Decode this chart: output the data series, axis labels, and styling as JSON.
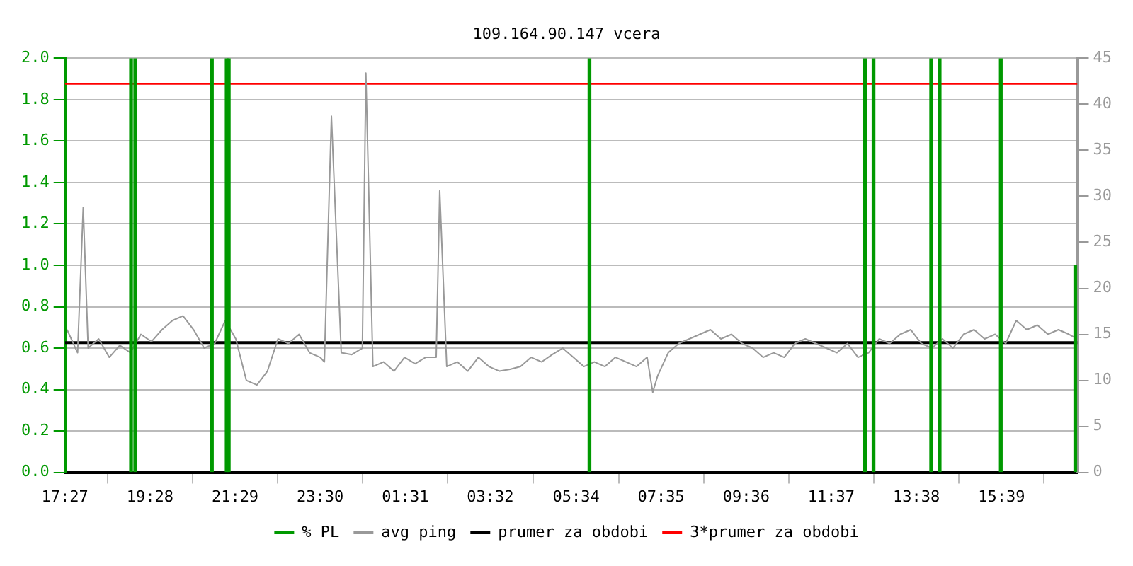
{
  "chart_data": {
    "type": "line",
    "title": "109.164.90.147 vcera",
    "xlim": [
      "--01-01T17:27",
      "--01-02T17:27"
    ],
    "xticks": [
      {
        "value": "--01-01T17:27",
        "label": "17:27"
      },
      {
        "value": "--01-01T19:28",
        "label": "19:28"
      },
      {
        "value": "--01-01T21:29",
        "label": "21:29"
      },
      {
        "value": "--01-01T23:30",
        "label": "23:30"
      },
      {
        "value": "--01-02T01:31",
        "label": "01:31"
      },
      {
        "value": "--01-02T03:32",
        "label": "03:32"
      },
      {
        "value": "--01-02T05:34",
        "label": "05:34"
      },
      {
        "value": "--01-02T07:35",
        "label": "07:35"
      },
      {
        "value": "--01-02T09:36",
        "label": "09:36"
      },
      {
        "value": "--01-02T11:37",
        "label": "11:37"
      },
      {
        "value": "--01-02T13:38",
        "label": "13:38"
      },
      {
        "value": "--01-02T15:39",
        "label": "15:39"
      }
    ],
    "ylim": [
      0,
      2
    ],
    "yticks": [
      {
        "value": 0,
        "label": "0.0"
      },
      0.2,
      0.4,
      0.6,
      0.8,
      {
        "value": 1,
        "label": "1.0"
      },
      1.2,
      1.4,
      1.6,
      1.8,
      {
        "value": 2,
        "label": "2.0"
      }
    ],
    "y2lim": [
      0,
      45
    ],
    "y2ticks": [
      0,
      5,
      10,
      15,
      20,
      25,
      30,
      35,
      40,
      45
    ],
    "grid": "y",
    "legend": "bottom",
    "marker": "none",
    "line_style": "solid",
    "series": [
      {
        "name": "% PL",
        "type": "bar",
        "axis": "y",
        "color": "#009900",
        "x": [
          "--01-01T19:01",
          "--01-01T19:07",
          "--01-01T20:56",
          "--01-01T21:17",
          "--01-01T21:20",
          "--01-02T05:53",
          "--01-02T12:25",
          "--01-02T12:37",
          "--01-02T13:59",
          "--01-02T14:11",
          "--01-02T15:38",
          "--01-02T17:24"
        ],
        "values": [
          2,
          2,
          2,
          2,
          2,
          2,
          2,
          2,
          2,
          2,
          2,
          1
        ]
      },
      {
        "name": "avg ping",
        "axis": "y2",
        "color": "#999999",
        "x": [
          "--01-01T17:30",
          "--01-01T17:45",
          "--01-01T17:53",
          "--01-01T18:00",
          "--01-01T18:15",
          "--01-01T18:30",
          "--01-01T18:45",
          "--01-01T19:00",
          "--01-01T19:15",
          "--01-01T19:30",
          "--01-01T19:45",
          "--01-01T20:00",
          "--01-01T20:15",
          "--01-01T20:30",
          "--01-01T20:45",
          "--01-01T21:00",
          "--01-01T21:15",
          "--01-01T21:30",
          "--01-01T21:45",
          "--01-01T22:00",
          "--01-01T22:15",
          "--01-01T22:30",
          "--01-01T22:45",
          "--01-01T23:00",
          "--01-01T23:15",
          "--01-01T23:30",
          "--01-01T23:36",
          "--01-01T23:46",
          "--01-02T00:00",
          "--01-02T00:15",
          "--01-02T00:30",
          "--01-02T00:35",
          "--01-02T00:45",
          "--01-02T01:00",
          "--01-02T01:15",
          "--01-02T01:30",
          "--01-02T01:45",
          "--01-02T02:00",
          "--01-02T02:15",
          "--01-02T02:20",
          "--01-02T02:30",
          "--01-02T02:45",
          "--01-02T03:00",
          "--01-02T03:15",
          "--01-02T03:30",
          "--01-02T03:45",
          "--01-02T04:00",
          "--01-02T04:15",
          "--01-02T04:30",
          "--01-02T04:45",
          "--01-02T05:00",
          "--01-02T05:15",
          "--01-02T05:30",
          "--01-02T05:45",
          "--01-02T06:00",
          "--01-02T06:15",
          "--01-02T06:30",
          "--01-02T06:45",
          "--01-02T07:00",
          "--01-02T07:15",
          "--01-02T07:23",
          "--01-02T07:30",
          "--01-02T07:45",
          "--01-02T08:00",
          "--01-02T08:15",
          "--01-02T08:30",
          "--01-02T08:45",
          "--01-02T09:00",
          "--01-02T09:15",
          "--01-02T09:30",
          "--01-02T09:45",
          "--01-02T10:00",
          "--01-02T10:15",
          "--01-02T10:30",
          "--01-02T10:45",
          "--01-02T11:00",
          "--01-02T11:15",
          "--01-02T11:30",
          "--01-02T11:45",
          "--01-02T12:00",
          "--01-02T12:15",
          "--01-02T12:30",
          "--01-02T12:45",
          "--01-02T13:00",
          "--01-02T13:15",
          "--01-02T13:30",
          "--01-02T13:45",
          "--01-02T14:00",
          "--01-02T14:15",
          "--01-02T14:30",
          "--01-02T14:45",
          "--01-02T15:00",
          "--01-02T15:15",
          "--01-02T15:30",
          "--01-02T15:45",
          "--01-02T16:00",
          "--01-02T16:15",
          "--01-02T16:30",
          "--01-02T16:45",
          "--01-02T17:00",
          "--01-02T17:15",
          "--01-02T17:27"
        ],
        "values": [
          15.5,
          13,
          28.8,
          13.5,
          14.5,
          12.5,
          13.8,
          13,
          15,
          14.2,
          15.5,
          16.5,
          17,
          15.5,
          13.5,
          14,
          16.5,
          14.5,
          10,
          9.5,
          11,
          14.5,
          14,
          15,
          13,
          12.5,
          12,
          38.7,
          13,
          12.8,
          13.5,
          43.4,
          11.5,
          12,
          11,
          12.5,
          11.8,
          12.5,
          12.5,
          30.6,
          11.5,
          12,
          11,
          12.5,
          11.5,
          11,
          11.2,
          11.5,
          12.5,
          12,
          12.8,
          13.5,
          12.5,
          11.5,
          12,
          11.5,
          12.5,
          12,
          11.5,
          12.5,
          8.7,
          10.5,
          13,
          14,
          14.5,
          15,
          15.5,
          14.5,
          15,
          14,
          13.5,
          12.5,
          13,
          12.5,
          14,
          14.5,
          14,
          13.5,
          13,
          14,
          12.5,
          13,
          14.5,
          14,
          15,
          15.5,
          14,
          13.5,
          14.5,
          13.5,
          15,
          15.5,
          14.5,
          15,
          14,
          16.5,
          15.5,
          16,
          15,
          15.5,
          15,
          14.5
        ]
      }
    ],
    "ref_lines": [
      {
        "axis": "y2",
        "value": 14.1,
        "label": "prumer za obdobi",
        "color": "#000000"
      },
      {
        "axis": "y2",
        "value": 42.2,
        "label": "3*prumer za obdobi",
        "color": "#ff0000"
      }
    ]
  }
}
